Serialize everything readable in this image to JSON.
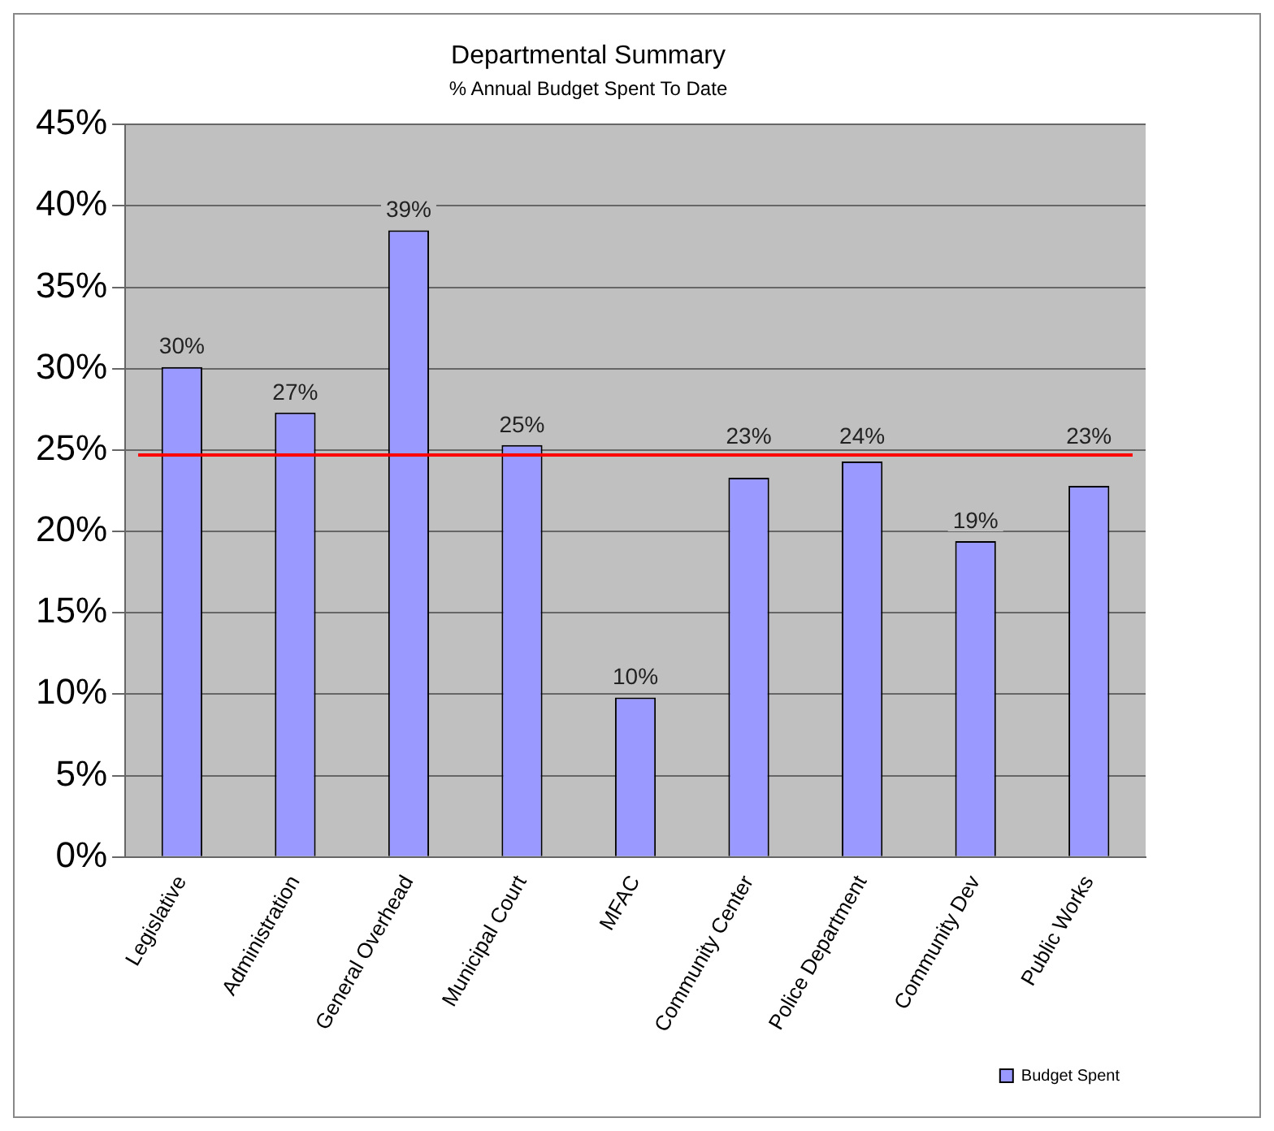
{
  "chart_data": {
    "type": "bar",
    "title": "Departmental Summary",
    "subtitle": "% Annual Budget Spent To Date",
    "categories": [
      "Legislative",
      "Administration",
      "General Overhead",
      "Municipal Court",
      "MFAC",
      "Community Center",
      "Police Department",
      "Community Dev",
      "Public Works"
    ],
    "series": [
      {
        "name": "Budget Spent",
        "color": "#9999ff",
        "values": [
          30.1,
          27.3,
          38.5,
          25.3,
          9.8,
          23.3,
          24.3,
          19.4,
          22.8
        ],
        "value_labels": [
          "30%",
          "27%",
          "39%",
          "25%",
          "10%",
          "23%",
          "24%",
          "19%",
          "23%"
        ]
      }
    ],
    "ylim": [
      0,
      45
    ],
    "yticks": [
      {
        "value": 0,
        "label": "0%"
      },
      {
        "value": 5,
        "label": "5%"
      },
      {
        "value": 10,
        "label": "10%"
      },
      {
        "value": 15,
        "label": "15%"
      },
      {
        "value": 20,
        "label": "20%"
      },
      {
        "value": 25,
        "label": "25%"
      },
      {
        "value": 30,
        "label": "30%"
      },
      {
        "value": 35,
        "label": "35%"
      },
      {
        "value": 40,
        "label": "40%"
      },
      {
        "value": 45,
        "label": "45%"
      }
    ],
    "ref_lines": [
      {
        "axis": "y",
        "value": 24.7,
        "color": "#ff0000"
      }
    ],
    "grid": "y",
    "legend": "bottom right"
  }
}
